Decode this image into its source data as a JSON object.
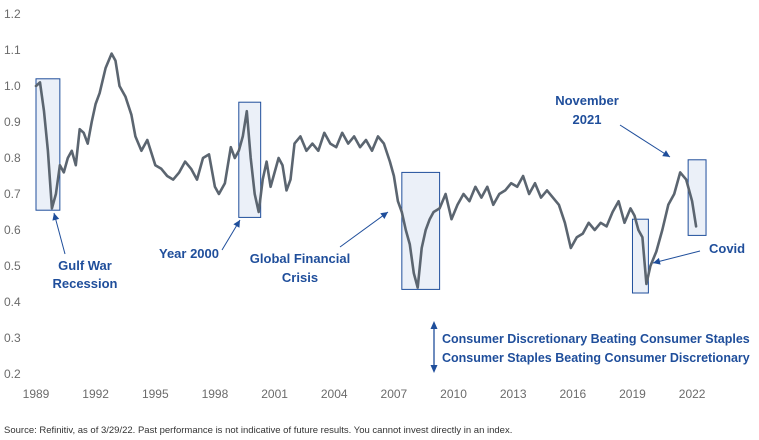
{
  "chart_data": {
    "type": "line",
    "title": "",
    "xlabel": "",
    "ylabel": "",
    "xlim": [
      1989.0,
      2023.0
    ],
    "ylim": [
      0.2,
      1.2
    ],
    "x_ticks": [
      "1989",
      "1992",
      "1995",
      "1998",
      "2001",
      "2004",
      "2007",
      "2010",
      "2013",
      "2016",
      "2019",
      "2022"
    ],
    "y_ticks": [
      "0.2",
      "0.3",
      "0.4",
      "0.5",
      "0.6",
      "0.7",
      "0.8",
      "0.9",
      "1.0",
      "1.1",
      "1.2"
    ],
    "grid": false,
    "series": [
      {
        "name": "",
        "color": "#5b6570",
        "x": [
          1989.0,
          1989.2,
          1989.4,
          1989.6,
          1989.8,
          1990.0,
          1990.2,
          1990.4,
          1990.6,
          1990.8,
          1991.0,
          1991.2,
          1991.4,
          1991.6,
          1991.8,
          1992.0,
          1992.2,
          1992.5,
          1992.8,
          1993.0,
          1993.2,
          1993.5,
          1993.8,
          1994.0,
          1994.3,
          1994.6,
          1995.0,
          1995.3,
          1995.6,
          1995.9,
          1996.2,
          1996.5,
          1996.8,
          1997.1,
          1997.4,
          1997.7,
          1998.0,
          1998.2,
          1998.5,
          1998.8,
          1999.0,
          1999.2,
          1999.4,
          1999.6,
          1999.8,
          2000.0,
          2000.2,
          2000.4,
          2000.6,
          2000.8,
          2001.0,
          2001.2,
          2001.4,
          2001.6,
          2001.8,
          2002.0,
          2002.3,
          2002.6,
          2002.9,
          2003.2,
          2003.5,
          2003.8,
          2004.1,
          2004.4,
          2004.7,
          2005.0,
          2005.3,
          2005.6,
          2005.9,
          2006.2,
          2006.5,
          2006.8,
          2007.0,
          2007.2,
          2007.4,
          2007.6,
          2007.8,
          2008.0,
          2008.2,
          2008.4,
          2008.6,
          2008.8,
          2009.0,
          2009.3,
          2009.6,
          2009.9,
          2010.2,
          2010.5,
          2010.8,
          2011.1,
          2011.4,
          2011.7,
          2012.0,
          2012.3,
          2012.6,
          2012.9,
          2013.2,
          2013.5,
          2013.8,
          2014.1,
          2014.4,
          2014.7,
          2015.0,
          2015.3,
          2015.6,
          2015.9,
          2016.2,
          2016.5,
          2016.8,
          2017.1,
          2017.4,
          2017.7,
          2018.0,
          2018.3,
          2018.6,
          2018.9,
          2019.1,
          2019.3,
          2019.5,
          2019.7,
          2019.9,
          2020.2,
          2020.5,
          2020.8,
          2021.1,
          2021.4,
          2021.7,
          2022.0,
          2022.2
        ],
        "y": [
          1.0,
          1.01,
          0.93,
          0.82,
          0.66,
          0.7,
          0.78,
          0.76,
          0.8,
          0.82,
          0.78,
          0.88,
          0.87,
          0.84,
          0.9,
          0.95,
          0.98,
          1.05,
          1.09,
          1.07,
          1.0,
          0.97,
          0.92,
          0.86,
          0.82,
          0.85,
          0.78,
          0.77,
          0.75,
          0.74,
          0.76,
          0.79,
          0.77,
          0.74,
          0.8,
          0.81,
          0.72,
          0.7,
          0.73,
          0.83,
          0.8,
          0.82,
          0.86,
          0.93,
          0.8,
          0.7,
          0.65,
          0.74,
          0.79,
          0.72,
          0.76,
          0.8,
          0.78,
          0.71,
          0.74,
          0.84,
          0.86,
          0.82,
          0.84,
          0.82,
          0.87,
          0.84,
          0.83,
          0.87,
          0.84,
          0.86,
          0.83,
          0.85,
          0.82,
          0.86,
          0.84,
          0.79,
          0.75,
          0.68,
          0.65,
          0.6,
          0.56,
          0.48,
          0.44,
          0.55,
          0.6,
          0.63,
          0.65,
          0.66,
          0.7,
          0.63,
          0.67,
          0.7,
          0.68,
          0.72,
          0.69,
          0.72,
          0.67,
          0.7,
          0.71,
          0.73,
          0.72,
          0.75,
          0.7,
          0.73,
          0.69,
          0.71,
          0.69,
          0.67,
          0.62,
          0.55,
          0.58,
          0.59,
          0.62,
          0.6,
          0.62,
          0.61,
          0.65,
          0.68,
          0.62,
          0.66,
          0.64,
          0.6,
          0.58,
          0.45,
          0.5,
          0.54,
          0.6,
          0.67,
          0.7,
          0.76,
          0.74,
          0.68,
          0.61
        ]
      }
    ],
    "highlights": [
      {
        "x0": 1989.0,
        "x1": 1990.2,
        "y0": 0.655,
        "y1": 1.02
      },
      {
        "x0": 1999.2,
        "x1": 2000.3,
        "y0": 0.635,
        "y1": 0.955
      },
      {
        "x0": 2007.4,
        "x1": 2009.3,
        "y0": 0.435,
        "y1": 0.76
      },
      {
        "x0": 2019.0,
        "x1": 2019.8,
        "y0": 0.425,
        "y1": 0.63
      },
      {
        "x0": 2021.8,
        "x1": 2022.7,
        "y0": 0.585,
        "y1": 0.795
      }
    ],
    "annotations": [
      {
        "id": "gulf",
        "lines": [
          "Gulf War",
          "Recession"
        ]
      },
      {
        "id": "y2k",
        "lines": [
          "Year 2000"
        ]
      },
      {
        "id": "gfc",
        "lines": [
          "Global Financial",
          "Crisis"
        ]
      },
      {
        "id": "nov",
        "lines": [
          "November",
          "2021"
        ]
      },
      {
        "id": "covid",
        "lines": [
          "Covid"
        ]
      }
    ],
    "legend": {
      "up": "Consumer Discretionary Beating Consumer Staples",
      "down": "Consumer Staples Beating Consumer Discretionary"
    }
  },
  "source_note": "Source: Refinitiv, as of 3/29/22. Past performance is not indicative of future results. You cannot invest directly in an index."
}
